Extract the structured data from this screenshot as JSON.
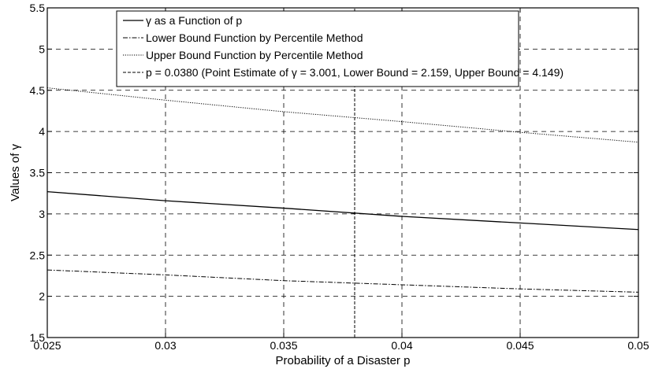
{
  "chart_data": {
    "type": "line",
    "xlabel": "Probability of a Disaster p",
    "ylabel": "Values of γ",
    "xlim": [
      0.025,
      0.05
    ],
    "ylim": [
      1.5,
      5.5
    ],
    "xticks": [
      "0.025",
      "0.03",
      "0.035",
      "0.04",
      "0.045",
      "0.05"
    ],
    "xtick_values": [
      0.025,
      0.03,
      0.035,
      0.04,
      0.045,
      0.05
    ],
    "yticks": [
      "1.5",
      "2",
      "2.5",
      "3",
      "3.5",
      "4",
      "4.5",
      "5",
      "5.5"
    ],
    "ytick_values": [
      1.5,
      2,
      2.5,
      3,
      3.5,
      4,
      4.5,
      5,
      5.5
    ],
    "grid": true,
    "legend_position": "top-center",
    "series": [
      {
        "name": "γ as a Function of p",
        "style": "solid",
        "x": [
          0.025,
          0.03,
          0.035,
          0.04,
          0.045,
          0.05
        ],
        "y": [
          3.27,
          3.16,
          3.07,
          2.97,
          2.89,
          2.81
        ]
      },
      {
        "name": "Lower Bound Function by Percentile Method",
        "style": "dashdot",
        "x": [
          0.025,
          0.03,
          0.035,
          0.04,
          0.045,
          0.05
        ],
        "y": [
          2.32,
          2.26,
          2.19,
          2.14,
          2.09,
          2.05
        ]
      },
      {
        "name": "Upper Bound Function by Percentile Method",
        "style": "dotted",
        "x": [
          0.025,
          0.03,
          0.035,
          0.04,
          0.045,
          0.05
        ],
        "y": [
          4.53,
          4.38,
          4.24,
          4.12,
          3.99,
          3.87
        ]
      },
      {
        "name": "p = 0.0380 (Point Estimate of γ = 3.001, Lower Bound = 2.159, Upper Bound = 4.149)",
        "style": "dashed-vertical",
        "x": [
          0.038,
          0.038
        ],
        "y": [
          1.5,
          5.5
        ]
      }
    ]
  }
}
